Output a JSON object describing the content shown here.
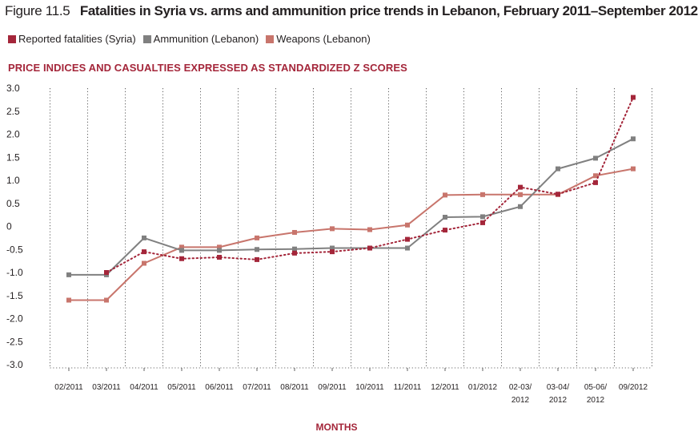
{
  "figure": {
    "label": "Figure 11.5",
    "title": "Fatalities in Syria vs. arms and ammunition price trends in Lebanon, February 2011–September 2012"
  },
  "colors": {
    "fatalities": "#a4263a",
    "ammunition": "#808080",
    "weapons": "#c8756c",
    "subtitle": "#a4263a"
  },
  "chart_data": {
    "type": "line",
    "title": "Fatalities in Syria vs. arms and ammunition price trends in Lebanon, February 2011–September 2012",
    "subtitle": "PRICE INDICES AND CASUALTIES EXPRESSED AS STANDARDIZED Z SCORES",
    "xlabel": "MONTHS",
    "ylabel": "",
    "ylim": [
      -3.0,
      3.0
    ],
    "yticks": [
      "3.0",
      "2.5",
      "2.0",
      "1.5",
      "1.0",
      "0.5",
      "0",
      "-0.5",
      "-1.0",
      "-1.5",
      "-2.0",
      "-2.5",
      "-3.0"
    ],
    "ytick_values": [
      3.0,
      2.5,
      2.0,
      1.5,
      1.0,
      0.5,
      0,
      -0.5,
      -1.0,
      -1.5,
      -2.0,
      -2.5,
      -3.0
    ],
    "categories": [
      [
        "02/2011"
      ],
      [
        "03/2011"
      ],
      [
        "04/2011"
      ],
      [
        "05/2011"
      ],
      [
        "06/2011"
      ],
      [
        "07/2011"
      ],
      [
        "08/2011"
      ],
      [
        "09/2011"
      ],
      [
        "10/2011"
      ],
      [
        "11/2011"
      ],
      [
        "12/2011"
      ],
      [
        "01/2012"
      ],
      [
        "02-03/",
        "2012"
      ],
      [
        "03-04/",
        "2012"
      ],
      [
        "05-06/",
        "2012"
      ],
      [
        "09/2012"
      ]
    ],
    "grid": "vertical dotted",
    "legend_position": "top-left",
    "series": [
      {
        "name": "Reported fatalities (Syria)",
        "style": "dotted",
        "values": [
          null,
          -1.0,
          -0.55,
          -0.7,
          -0.67,
          -0.72,
          -0.58,
          -0.55,
          -0.47,
          -0.28,
          -0.08,
          0.08,
          0.85,
          0.7,
          0.95,
          2.8
        ]
      },
      {
        "name": "Ammunition (Lebanon)",
        "style": "solid",
        "values": [
          -1.05,
          -1.05,
          -0.25,
          -0.52,
          -0.52,
          -0.5,
          -0.49,
          -0.47,
          -0.47,
          -0.47,
          0.2,
          0.21,
          0.43,
          1.25,
          1.48,
          1.9
        ]
      },
      {
        "name": "Weapons (Lebanon)",
        "style": "solid",
        "values": [
          -1.6,
          -1.6,
          -0.8,
          -0.45,
          -0.45,
          -0.25,
          -0.13,
          -0.05,
          -0.07,
          0.03,
          0.68,
          0.69,
          0.69,
          0.69,
          1.1,
          1.25
        ]
      }
    ]
  }
}
